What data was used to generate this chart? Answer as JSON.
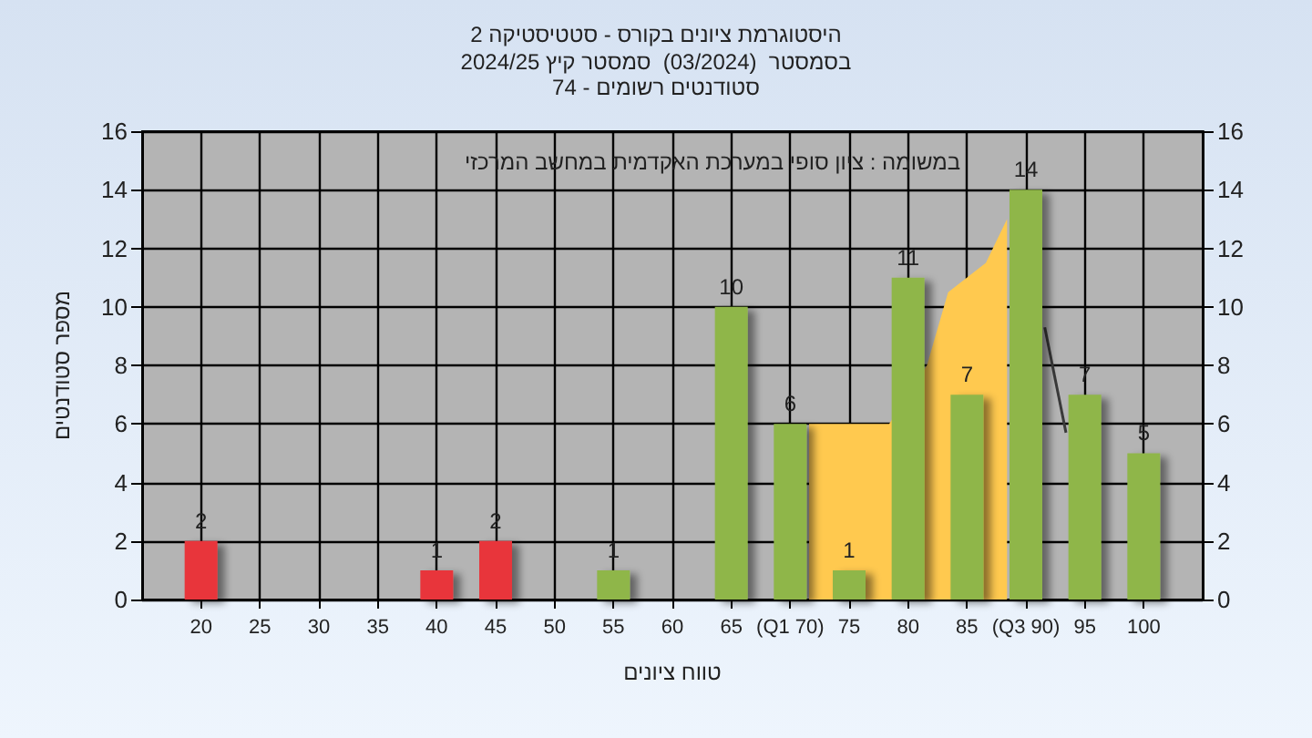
{
  "chart_data": {
    "type": "bar",
    "title": "היסטוגרמת ציונים בקורס - סטטיסטיקה 2",
    "subtitle": "בסמסטר  (03/2024)  סמסטר קיץ 2024/25\nסטודנטים רשומים - 74",
    "xlabel": "טווח ציונים",
    "ylabel": "מספר סטודנטים",
    "annotations": [
      "במשומה : ציון סופי במערכת האקדמית במחשב המרכזי"
    ],
    "x": [
      20,
      40,
      45,
      55,
      65,
      70,
      75,
      80,
      85,
      90,
      95,
      100
    ],
    "series": [
      {
        "type": "area",
        "color": "#ffc94f",
        "x": [
          71.6,
          78.4,
          81.6,
          83.4,
          86.6,
          88.4
        ],
        "values": [
          6,
          6,
          8,
          10.5,
          11.5,
          13
        ]
      },
      {
        "type": "line",
        "color": "#3a3a3a",
        "x": [
          91.6,
          93.4
        ],
        "values": [
          9.3,
          5.7
        ]
      },
      {
        "values": [
          2,
          1,
          2,
          1,
          10,
          6,
          1,
          11,
          7,
          14,
          7,
          5
        ],
        "value_labels": [
          "2",
          "1",
          "2",
          "1",
          "10",
          "6",
          "1",
          "11",
          "7",
          "14",
          "7",
          "5"
        ],
        "colors": [
          "#e8353a",
          "#e8353a",
          "#e8353a",
          "#8fb648",
          "#8fb648",
          "#8fb648",
          "#8fb648",
          "#8fb648",
          "#8fb648",
          "#8fb648",
          "#8fb648",
          "#8fb648"
        ]
      }
    ],
    "xlim": [
      15,
      105
    ],
    "xticks": [
      20,
      25,
      30,
      35,
      40,
      45,
      50,
      55,
      60,
      65,
      {
        "value": 70,
        "label": "(Q1 70)"
      },
      75,
      80,
      85,
      {
        "value": 90,
        "label": "(Q3 90)"
      },
      95,
      100
    ],
    "ylim": [
      0,
      16
    ],
    "yticks": [
      0,
      2,
      4,
      6,
      8,
      10,
      12,
      14,
      16
    ],
    "y2lim": [
      0,
      16
    ],
    "y2ticks": [
      0,
      2,
      4,
      6,
      8,
      10,
      12,
      14,
      16
    ],
    "grid": true
  }
}
